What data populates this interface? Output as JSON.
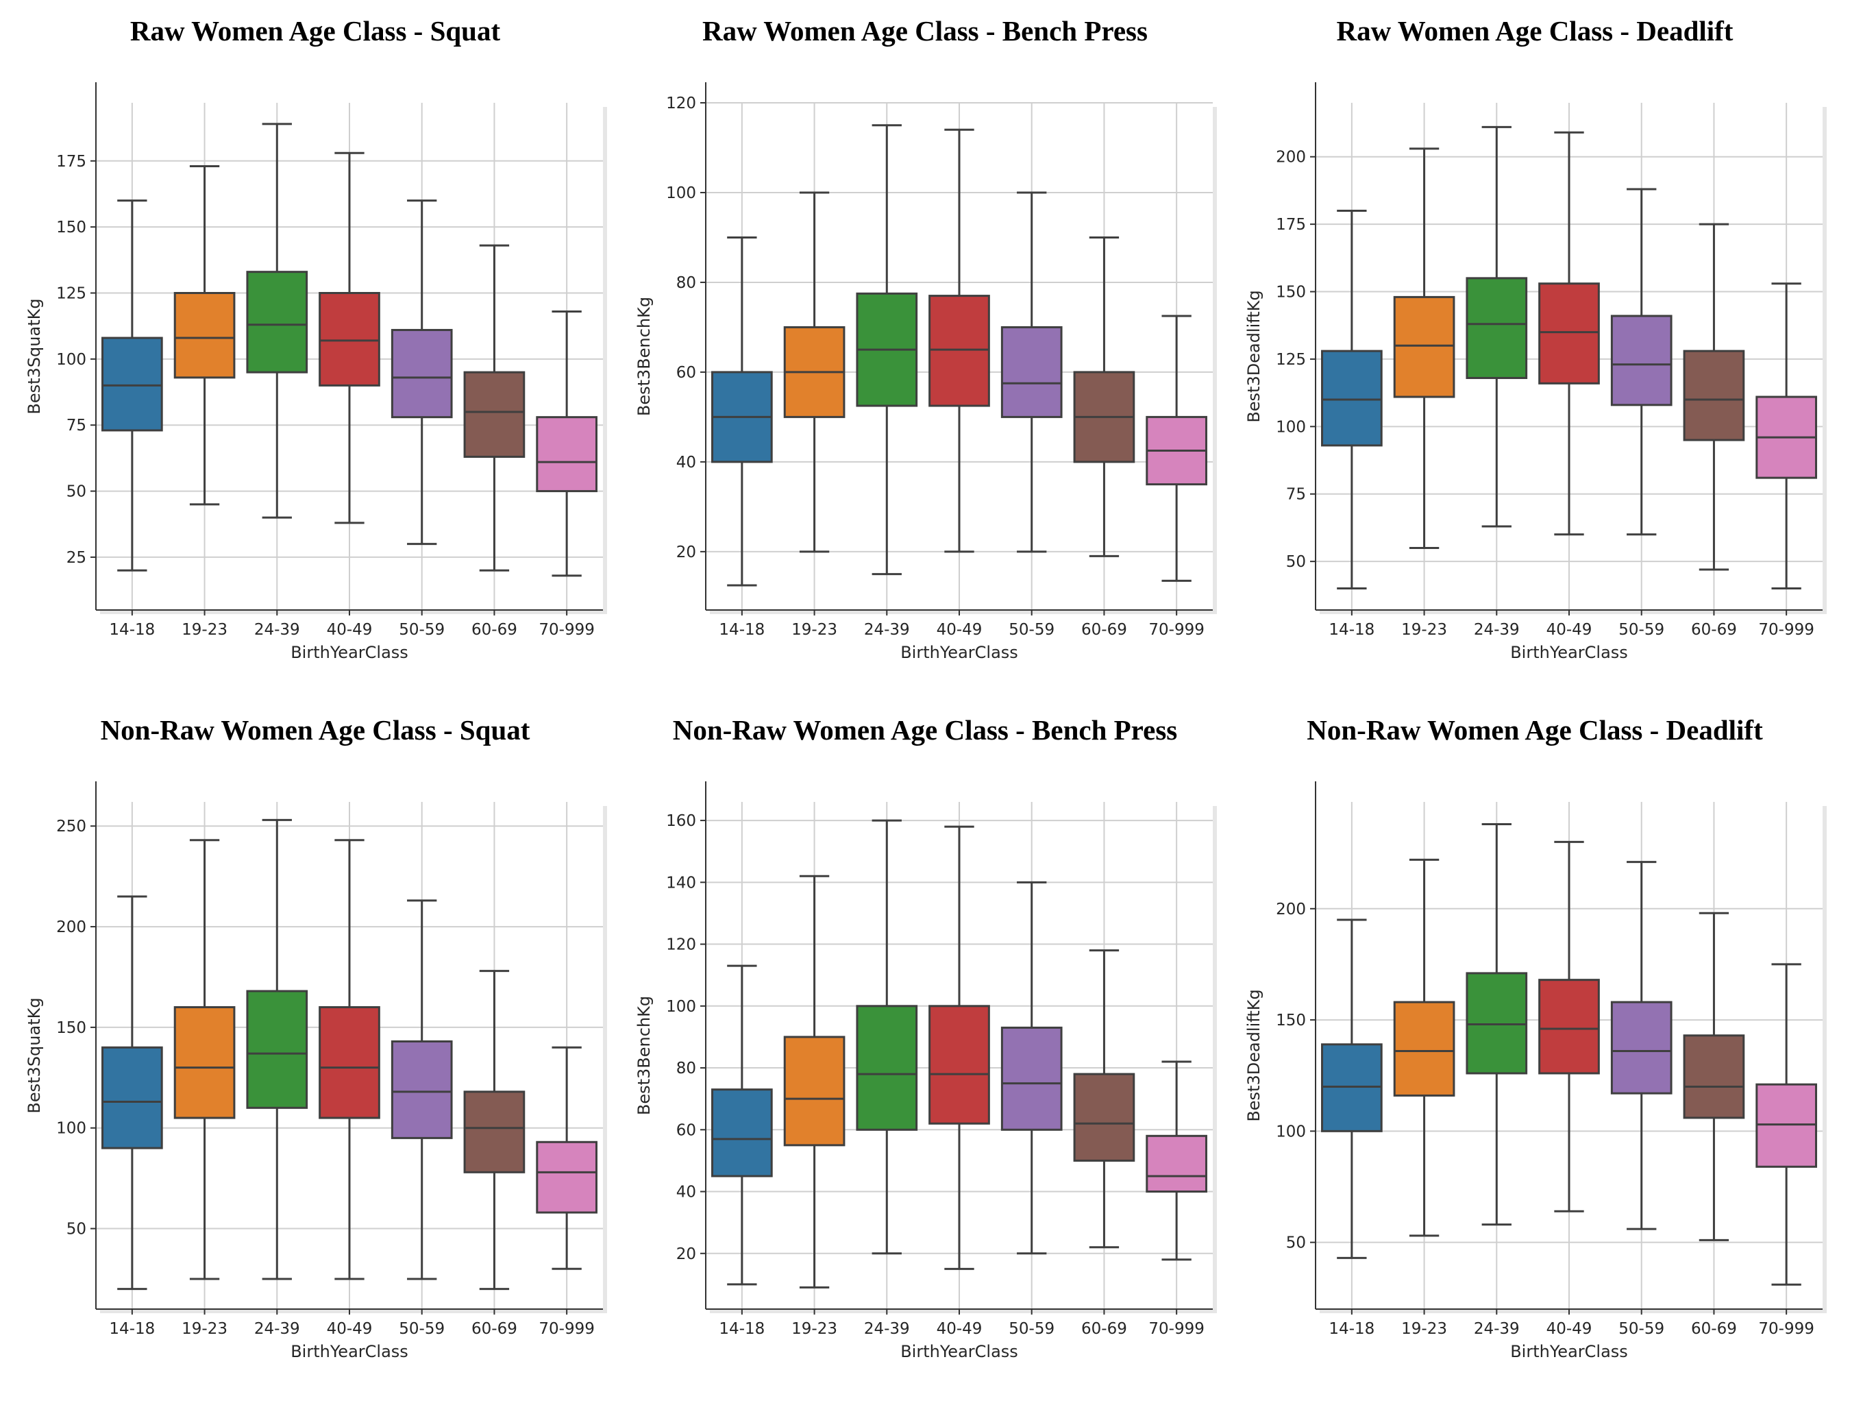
{
  "chart_data": [
    {
      "type": "box",
      "title": "Raw Women Age Class - Squat",
      "xlabel": "BirthYearClass",
      "ylabel": "Best3SquatKg",
      "categories": [
        "14-18",
        "19-23",
        "24-39",
        "40-49",
        "50-59",
        "60-69",
        "70-999"
      ],
      "ylim": [
        5,
        197
      ],
      "yticks": [
        25,
        50,
        75,
        100,
        125,
        150,
        175
      ],
      "grid": true,
      "boxes": [
        {
          "category": "14-18",
          "whisker_low": 20,
          "q1": 73,
          "median": 90,
          "q3": 108,
          "whisker_high": 160
        },
        {
          "category": "19-23",
          "whisker_low": 45,
          "q1": 93,
          "median": 108,
          "q3": 125,
          "whisker_high": 173
        },
        {
          "category": "24-39",
          "whisker_low": 40,
          "q1": 95,
          "median": 113,
          "q3": 133,
          "whisker_high": 189
        },
        {
          "category": "40-49",
          "whisker_low": 38,
          "q1": 90,
          "median": 107,
          "q3": 125,
          "whisker_high": 178
        },
        {
          "category": "50-59",
          "whisker_low": 30,
          "q1": 78,
          "median": 93,
          "q3": 111,
          "whisker_high": 160
        },
        {
          "category": "60-69",
          "whisker_low": 20,
          "q1": 63,
          "median": 80,
          "q3": 95,
          "whisker_high": 143
        },
        {
          "category": "70-999",
          "whisker_low": 18,
          "q1": 50,
          "median": 61,
          "q3": 78,
          "whisker_high": 118
        }
      ]
    },
    {
      "type": "box",
      "title": "Raw Women Age Class - Bench Press",
      "xlabel": "BirthYearClass",
      "ylabel": "Best3BenchKg",
      "categories": [
        "14-18",
        "19-23",
        "24-39",
        "40-49",
        "50-59",
        "60-69",
        "70-999"
      ],
      "ylim": [
        7,
        120
      ],
      "yticks": [
        20,
        40,
        60,
        80,
        100,
        120
      ],
      "grid": true,
      "boxes": [
        {
          "category": "14-18",
          "whisker_low": 12.5,
          "q1": 40,
          "median": 50,
          "q3": 60,
          "whisker_high": 90
        },
        {
          "category": "19-23",
          "whisker_low": 20,
          "q1": 50,
          "median": 60,
          "q3": 70,
          "whisker_high": 100
        },
        {
          "category": "24-39",
          "whisker_low": 15,
          "q1": 52.5,
          "median": 65,
          "q3": 77.5,
          "whisker_high": 115
        },
        {
          "category": "40-49",
          "whisker_low": 20,
          "q1": 52.5,
          "median": 65,
          "q3": 77,
          "whisker_high": 114
        },
        {
          "category": "50-59",
          "whisker_low": 20,
          "q1": 50,
          "median": 57.5,
          "q3": 70,
          "whisker_high": 100
        },
        {
          "category": "60-69",
          "whisker_low": 19,
          "q1": 40,
          "median": 50,
          "q3": 60,
          "whisker_high": 90
        },
        {
          "category": "70-999",
          "whisker_low": 13.5,
          "q1": 35,
          "median": 42.5,
          "q3": 50,
          "whisker_high": 72.5
        }
      ]
    },
    {
      "type": "box",
      "title": "Raw Women Age Class - Deadlift",
      "xlabel": "BirthYearClass",
      "ylabel": "Best3DeadliftKg",
      "categories": [
        "14-18",
        "19-23",
        "24-39",
        "40-49",
        "50-59",
        "60-69",
        "70-999"
      ],
      "ylim": [
        32,
        220
      ],
      "yticks": [
        50,
        75,
        100,
        125,
        150,
        175,
        200
      ],
      "grid": true,
      "boxes": [
        {
          "category": "14-18",
          "whisker_low": 40,
          "q1": 93,
          "median": 110,
          "q3": 128,
          "whisker_high": 180
        },
        {
          "category": "19-23",
          "whisker_low": 55,
          "q1": 111,
          "median": 130,
          "q3": 148,
          "whisker_high": 203
        },
        {
          "category": "24-39",
          "whisker_low": 63,
          "q1": 118,
          "median": 138,
          "q3": 155,
          "whisker_high": 211
        },
        {
          "category": "40-49",
          "whisker_low": 60,
          "q1": 116,
          "median": 135,
          "q3": 153,
          "whisker_high": 209
        },
        {
          "category": "50-59",
          "whisker_low": 60,
          "q1": 108,
          "median": 123,
          "q3": 141,
          "whisker_high": 188
        },
        {
          "category": "60-69",
          "whisker_low": 47,
          "q1": 95,
          "median": 110,
          "q3": 128,
          "whisker_high": 175
        },
        {
          "category": "70-999",
          "whisker_low": 40,
          "q1": 81,
          "median": 96,
          "q3": 111,
          "whisker_high": 153
        }
      ]
    },
    {
      "type": "box",
      "title": "Non-Raw Women Age Class - Squat",
      "xlabel": "BirthYearClass",
      "ylabel": "Best3SquatKg",
      "categories": [
        "14-18",
        "19-23",
        "24-39",
        "40-49",
        "50-59",
        "60-69",
        "70-999"
      ],
      "ylim": [
        10,
        262
      ],
      "yticks": [
        50,
        100,
        150,
        200,
        250
      ],
      "grid": true,
      "boxes": [
        {
          "category": "14-18",
          "whisker_low": 20,
          "q1": 90,
          "median": 113,
          "q3": 140,
          "whisker_high": 215
        },
        {
          "category": "19-23",
          "whisker_low": 25,
          "q1": 105,
          "median": 130,
          "q3": 160,
          "whisker_high": 243
        },
        {
          "category": "24-39",
          "whisker_low": 25,
          "q1": 110,
          "median": 137,
          "q3": 168,
          "whisker_high": 253
        },
        {
          "category": "40-49",
          "whisker_low": 25,
          "q1": 105,
          "median": 130,
          "q3": 160,
          "whisker_high": 243
        },
        {
          "category": "50-59",
          "whisker_low": 25,
          "q1": 95,
          "median": 118,
          "q3": 143,
          "whisker_high": 213
        },
        {
          "category": "60-69",
          "whisker_low": 20,
          "q1": 78,
          "median": 100,
          "q3": 118,
          "whisker_high": 178
        },
        {
          "category": "70-999",
          "whisker_low": 30,
          "q1": 58,
          "median": 78,
          "q3": 93,
          "whisker_high": 140
        }
      ]
    },
    {
      "type": "box",
      "title": "Non-Raw Women Age Class - Bench Press",
      "xlabel": "BirthYearClass",
      "ylabel": "Best3BenchKg",
      "categories": [
        "14-18",
        "19-23",
        "24-39",
        "40-49",
        "50-59",
        "60-69",
        "70-999"
      ],
      "ylim": [
        2,
        166
      ],
      "yticks": [
        20,
        40,
        60,
        80,
        100,
        120,
        140,
        160
      ],
      "grid": true,
      "boxes": [
        {
          "category": "14-18",
          "whisker_low": 10,
          "q1": 45,
          "median": 57,
          "q3": 73,
          "whisker_high": 113
        },
        {
          "category": "19-23",
          "whisker_low": 9,
          "q1": 55,
          "median": 70,
          "q3": 90,
          "whisker_high": 142
        },
        {
          "category": "24-39",
          "whisker_low": 20,
          "q1": 60,
          "median": 78,
          "q3": 100,
          "whisker_high": 160
        },
        {
          "category": "40-49",
          "whisker_low": 15,
          "q1": 62,
          "median": 78,
          "q3": 100,
          "whisker_high": 158
        },
        {
          "category": "50-59",
          "whisker_low": 20,
          "q1": 60,
          "median": 75,
          "q3": 93,
          "whisker_high": 140
        },
        {
          "category": "60-69",
          "whisker_low": 22,
          "q1": 50,
          "median": 62,
          "q3": 78,
          "whisker_high": 118
        },
        {
          "category": "70-999",
          "whisker_low": 18,
          "q1": 40,
          "median": 45,
          "q3": 58,
          "whisker_high": 82
        }
      ]
    },
    {
      "type": "box",
      "title": "Non-Raw Women Age Class - Deadlift",
      "xlabel": "BirthYearClass",
      "ylabel": "Best3DeadliftKg",
      "categories": [
        "14-18",
        "19-23",
        "24-39",
        "40-49",
        "50-59",
        "60-69",
        "70-999"
      ],
      "ylim": [
        20,
        248
      ],
      "yticks": [
        50,
        100,
        150,
        200
      ],
      "grid": true,
      "boxes": [
        {
          "category": "14-18",
          "whisker_low": 43,
          "q1": 100,
          "median": 120,
          "q3": 139,
          "whisker_high": 195
        },
        {
          "category": "19-23",
          "whisker_low": 53,
          "q1": 116,
          "median": 136,
          "q3": 158,
          "whisker_high": 222
        },
        {
          "category": "24-39",
          "whisker_low": 58,
          "q1": 126,
          "median": 148,
          "q3": 171,
          "whisker_high": 238
        },
        {
          "category": "40-49",
          "whisker_low": 64,
          "q1": 126,
          "median": 146,
          "q3": 168,
          "whisker_high": 230
        },
        {
          "category": "50-59",
          "whisker_low": 56,
          "q1": 117,
          "median": 136,
          "q3": 158,
          "whisker_high": 221
        },
        {
          "category": "60-69",
          "whisker_low": 51,
          "q1": 106,
          "median": 120,
          "q3": 143,
          "whisker_high": 198
        },
        {
          "category": "70-999",
          "whisker_low": 31,
          "q1": 84,
          "median": 103,
          "q3": 121,
          "whisker_high": 175
        }
      ]
    }
  ],
  "colors": [
    "#3274a1",
    "#e1812c",
    "#3a923a",
    "#c03d3e",
    "#9372b2",
    "#845b53",
    "#d684bd"
  ]
}
